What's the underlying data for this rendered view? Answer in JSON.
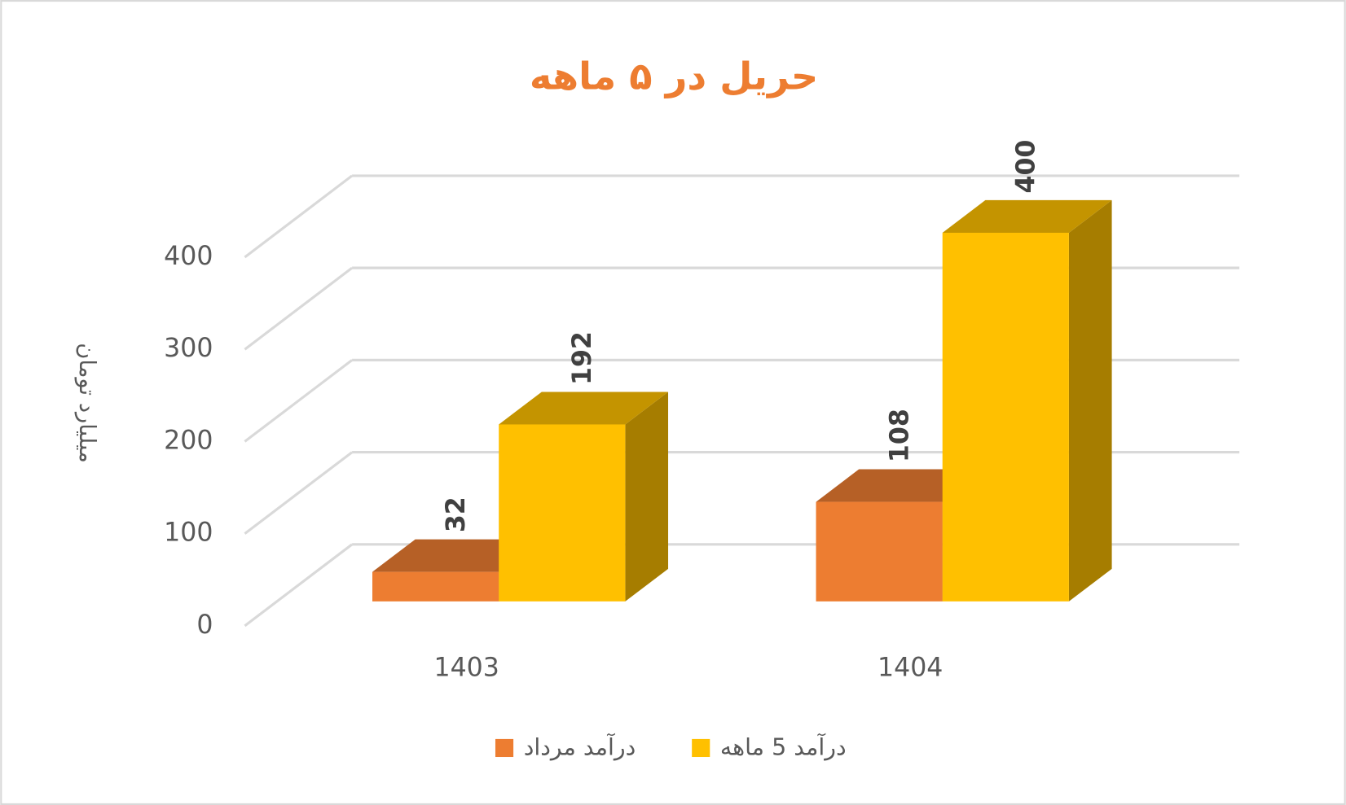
{
  "chart_data": {
    "type": "bar3d",
    "title": "حریل در ۵ ماهه",
    "y_label": "میلیارد تومان",
    "categories": [
      "1403",
      "1404"
    ],
    "series": [
      {
        "name": "درآمد  مرداد",
        "color": "#ed7d31",
        "values": [
          32,
          108
        ]
      },
      {
        "name": "درآمد 5 ماهه",
        "color": "#ffc000",
        "values": [
          192,
          400
        ]
      }
    ],
    "ylim": [
      0,
      400
    ],
    "yticks": [
      0,
      100,
      200,
      300,
      400
    ],
    "grid": true,
    "legend": "bottom"
  }
}
